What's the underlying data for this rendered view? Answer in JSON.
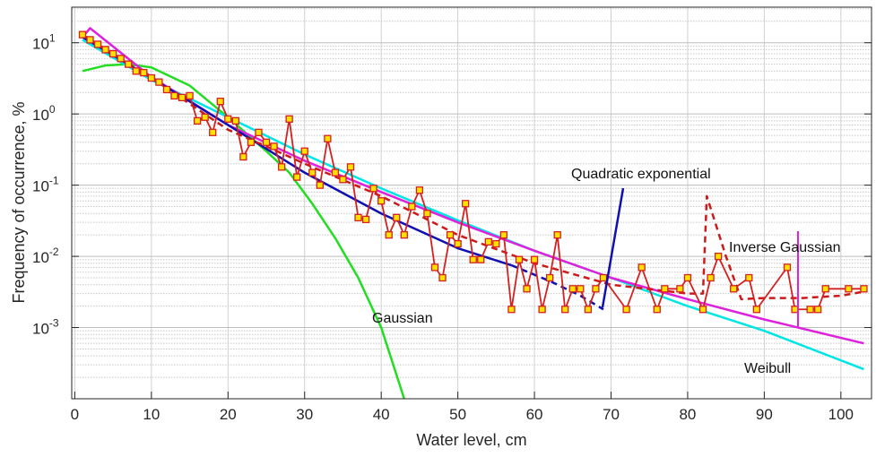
{
  "chart_data": {
    "type": "line",
    "xlabel": "Water level, cm",
    "ylabel": "Frequency of occurrence, %",
    "xlim": [
      -0.4,
      104
    ],
    "ylim": [
      0.0001,
      31.6
    ],
    "ylog": true,
    "grid": true,
    "xticks": [
      0,
      10,
      20,
      30,
      40,
      50,
      60,
      70,
      80,
      90,
      100
    ],
    "yticks": [
      {
        "value": 10,
        "label": "10",
        "exponent": "1"
      },
      {
        "value": 1,
        "label": "10",
        "exponent": "0"
      },
      {
        "value": 0.1,
        "label": "10",
        "exponent": "-1"
      },
      {
        "value": 0.01,
        "label": "10",
        "exponent": "-2"
      },
      {
        "value": 0.001,
        "label": "10",
        "exponent": "-3"
      }
    ],
    "annotations": [
      {
        "text": "Quadratic exponential"
      },
      {
        "text": "Inverse Gaussian"
      },
      {
        "text": "Gaussian"
      },
      {
        "text": "Weibull"
      }
    ],
    "series": [
      {
        "color": "#22dd22",
        "style": "solid",
        "x": [
          1,
          4,
          7,
          10,
          15,
          20,
          25,
          28,
          31,
          34,
          37,
          40,
          43
        ],
        "values": [
          4,
          4.8,
          5,
          4.5,
          2.5,
          0.9,
          0.3,
          0.15,
          0.055,
          0.018,
          0.005,
          0.001,
          0.0001
        ]
      },
      {
        "color": "#00e5e5",
        "style": "solid",
        "x": [
          1,
          10,
          20,
          30,
          40,
          50,
          60,
          70,
          80,
          90,
          103
        ],
        "values": [
          11,
          3,
          0.9,
          0.27,
          0.09,
          0.032,
          0.012,
          0.005,
          0.002,
          0.0009,
          0.00026
        ]
      },
      {
        "color": "#dd22dd",
        "style": "solid",
        "x": [
          1,
          2,
          10,
          20,
          30,
          40,
          50,
          60,
          70,
          80,
          90,
          103
        ],
        "values": [
          12,
          16,
          3.3,
          0.7,
          0.22,
          0.08,
          0.03,
          0.012,
          0.005,
          0.0025,
          0.0013,
          0.0006
        ]
      },
      {
        "color": "#1010b0",
        "style": "solid",
        "x": [
          1,
          10,
          20,
          30,
          40,
          50,
          57
        ],
        "values": [
          12,
          3.2,
          0.7,
          0.15,
          0.04,
          0.013,
          0.0075
        ]
      },
      {
        "color": "#1010b0",
        "style": "dashed",
        "x": [
          57,
          62,
          66,
          69
        ],
        "values": [
          0.0075,
          0.0045,
          0.0028,
          0.0018
        ]
      },
      {
        "color": "#cc1a1a",
        "style": "dashed",
        "x": [
          1,
          10,
          20,
          25,
          30,
          40,
          50,
          60,
          70,
          80,
          82,
          82.5,
          85,
          87,
          90,
          95,
          100,
          103
        ],
        "values": [
          13,
          3.2,
          0.6,
          0.35,
          0.2,
          0.07,
          0.02,
          0.008,
          0.004,
          0.003,
          0.003,
          0.07,
          0.01,
          0.0025,
          0.0026,
          0.0026,
          0.0028,
          0.0032
        ]
      },
      {
        "color": "#d42020",
        "style": "solid",
        "marker": "square",
        "marker_fill": "#ffe000",
        "x": [
          1,
          2,
          3,
          4,
          5,
          6,
          7,
          8,
          9,
          10,
          11,
          12,
          13,
          14,
          15,
          16,
          17,
          18,
          19,
          20,
          21,
          22,
          23,
          24,
          25,
          26,
          27,
          28,
          29,
          30,
          31,
          32,
          33,
          34,
          35,
          36,
          37,
          38,
          39,
          40,
          41,
          42,
          43,
          44,
          45,
          46,
          47,
          48,
          49,
          50,
          51,
          52,
          53,
          54,
          55,
          56,
          57,
          58,
          59,
          60,
          61,
          62,
          63,
          64,
          65,
          66,
          67,
          68,
          69,
          72,
          74,
          76,
          77,
          79,
          80,
          82,
          83,
          84,
          86,
          88,
          89,
          93,
          94,
          96,
          97,
          98,
          101,
          103
        ],
        "values": [
          13,
          11,
          9.5,
          8,
          7,
          6,
          5,
          4,
          3.8,
          3.2,
          2.8,
          2.2,
          1.8,
          1.7,
          1.8,
          0.8,
          0.9,
          0.55,
          1.5,
          0.85,
          0.8,
          0.25,
          0.4,
          0.55,
          0.4,
          0.35,
          0.18,
          0.85,
          0.13,
          0.3,
          0.15,
          0.1,
          0.45,
          0.15,
          0.12,
          0.18,
          0.035,
          0.033,
          0.09,
          0.06,
          0.02,
          0.035,
          0.02,
          0.05,
          0.085,
          0.04,
          0.007,
          0.005,
          0.02,
          0.015,
          0.055,
          0.009,
          0.009,
          0.016,
          0.015,
          0.02,
          0.0018,
          0.009,
          0.0035,
          0.009,
          0.0018,
          0.005,
          0.02,
          0.0018,
          0.0035,
          0.0035,
          0.0018,
          0.0035,
          0.005,
          0.0018,
          0.007,
          0.0018,
          0.0035,
          0.0035,
          0.005,
          0.0018,
          0.005,
          0.01,
          0.0035,
          0.005,
          0.0018,
          0.007,
          0.0018,
          0.0018,
          0.0018,
          0.0035,
          0.0035,
          0.0035
        ]
      }
    ]
  }
}
